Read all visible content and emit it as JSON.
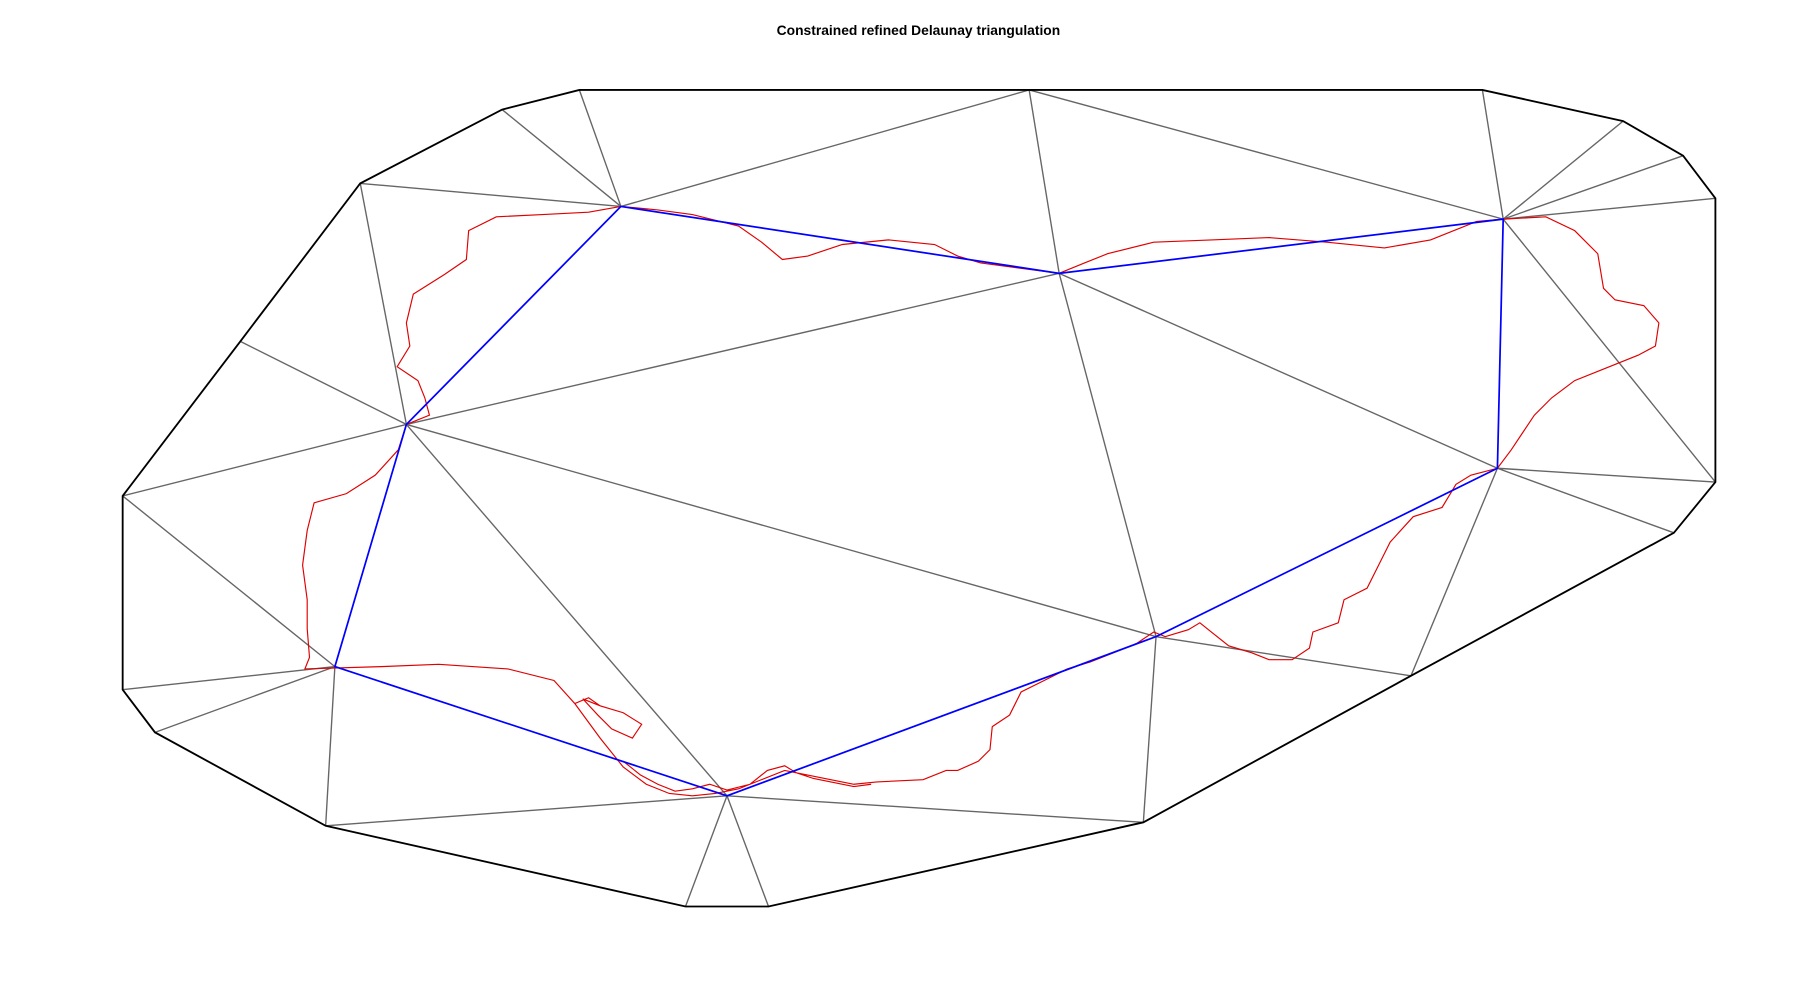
{
  "title": "Constrained refined Delaunay triangulation"
}
